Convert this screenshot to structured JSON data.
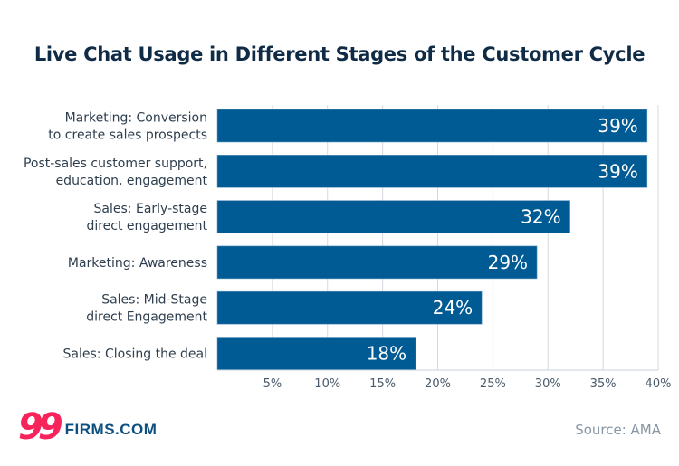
{
  "chart_data": {
    "type": "bar",
    "orientation": "horizontal",
    "title": "Live Chat Usage in Different Stages of the Customer Cycle",
    "categories": [
      [
        "Marketing: Conversion",
        "to create sales prospects"
      ],
      [
        "Post-sales customer support,",
        "education, engagement"
      ],
      [
        "Sales: Early-stage",
        "direct engagement"
      ],
      [
        "Marketing: Awareness"
      ],
      [
        "Sales: Mid-Stage",
        "direct Engagement"
      ],
      [
        "Sales: Closing the deal"
      ]
    ],
    "values": [
      39,
      39,
      32,
      29,
      24,
      18
    ],
    "data_labels": [
      "39%",
      "39%",
      "32%",
      "29%",
      "24%",
      "18%"
    ],
    "xlim": [
      0,
      40
    ],
    "xticks": [
      5,
      10,
      15,
      20,
      25,
      30,
      35,
      40
    ],
    "xtick_labels": [
      "5%",
      "10%",
      "15%",
      "20%",
      "25%",
      "30%",
      "35%",
      "40%"
    ],
    "grid": "vertical",
    "bar_color": "#005a93",
    "xlabel": "",
    "ylabel": ""
  },
  "logo": {
    "number": "99",
    "text": "FIRMS.COM"
  },
  "source": "Source: AMA"
}
